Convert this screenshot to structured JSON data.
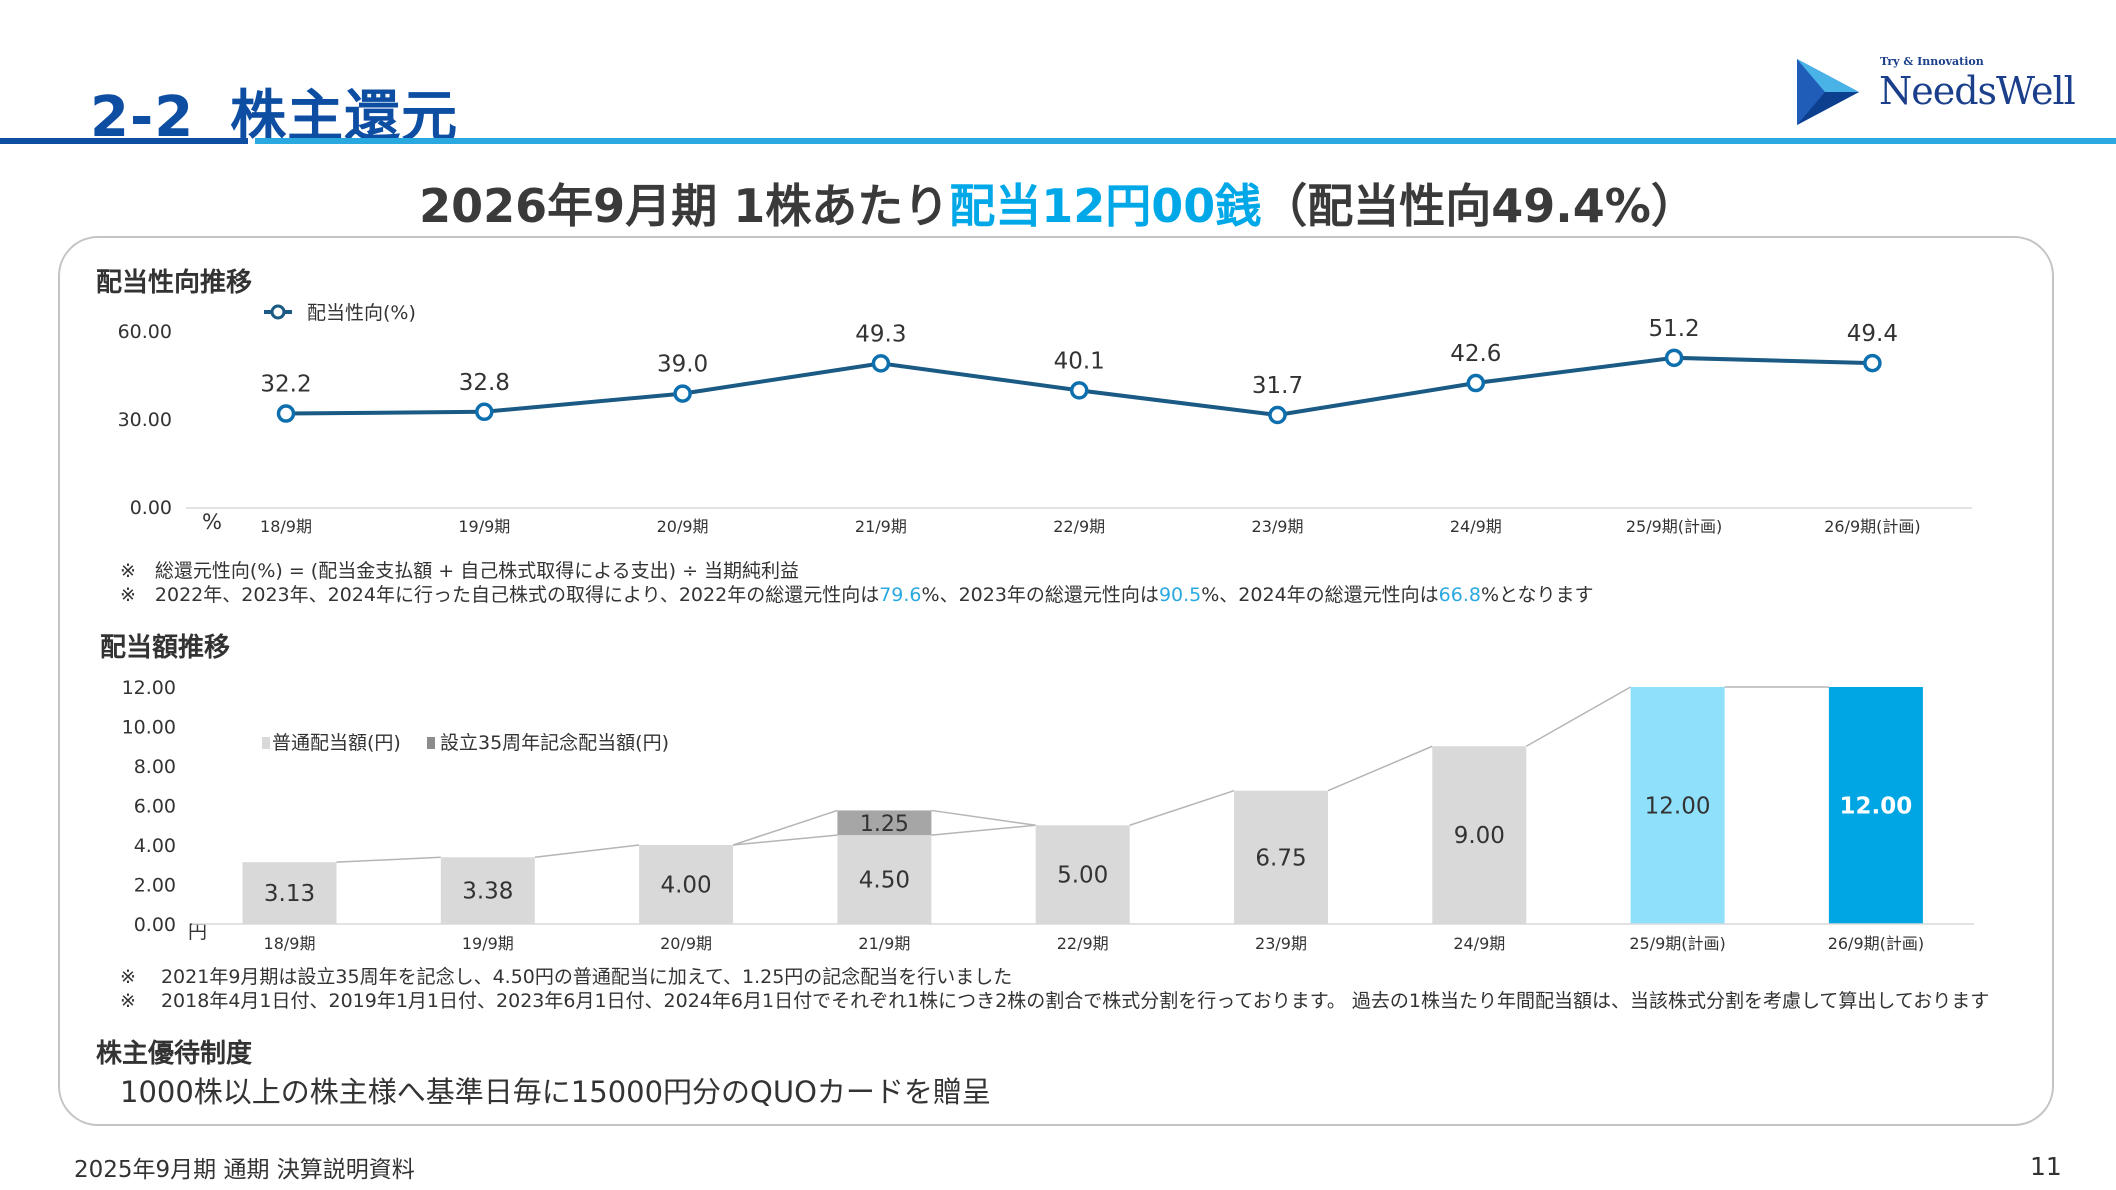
{
  "header": {
    "section_number": "2-2",
    "section_title": "株主還元",
    "logo_tagline": "Try & Innovation",
    "logo_name": "NeedsWell"
  },
  "headline": {
    "part1": "2026年9月期 1株あたり",
    "highlight": "配当12円00銭",
    "part2": "（配当性向49.4%）"
  },
  "payout_section": {
    "title": "配当性向推移",
    "notes": [
      "※　総還元性向(%) = (配当金支払額 + 自己株式取得による支出) ÷ 当期純利益"
    ],
    "note2": {
      "prefix": "※　2022年、2023年、2024年に行った自己株式の取得により、2022年の総還元性向は",
      "v1": "79.6",
      "mid1": "%、2023年の総還元性向は",
      "v2": "90.5",
      "mid2": "%、2024年の総還元性向は",
      "v3": "66.8",
      "suffix": "%となります"
    }
  },
  "dividend_section": {
    "title": "配当額推移",
    "notes": [
      "※　 2021年9月期は設立35周年を記念し、4.50円の普通配当に加えて、1.25円の記念配当を行いました",
      "※　 2018年4月1日付、2019年1月1日付、2023年6月1日付、2024年6月1日付でそれぞれ1株につき2株の割合で株式分割を行っております。 過去の1株当たり年間配当額は、当該株式分割を考慮して算出しております"
    ]
  },
  "benefit_section": {
    "title": "株主優待制度",
    "text": "1000株以上の株主様へ基準日毎に15000円分のQUOカードを贈呈"
  },
  "footer": {
    "doc_title": "2025年9月期 通期 決算説明資料",
    "page_number": "11"
  },
  "chart_data": [
    {
      "type": "line",
      "categories": [
        "18/9期",
        "19/9期",
        "20/9期",
        "21/9期",
        "22/9期",
        "23/9期",
        "24/9期",
        "25/9期(計画)",
        "26/9期(計画)"
      ],
      "series": [
        {
          "name": "配当性向(%)",
          "values": [
            32.2,
            32.8,
            39.0,
            49.3,
            40.1,
            31.7,
            42.6,
            51.2,
            49.4
          ],
          "labels": [
            "32.2",
            "32.8",
            "39.0",
            "49.3",
            "40.1",
            "31.7",
            "42.6",
            "51.2",
            "49.4"
          ]
        }
      ],
      "yticks": [
        "0.00",
        "30.00",
        "60.00"
      ],
      "ytick_values": [
        0,
        30,
        60
      ],
      "ylim": [
        0,
        60
      ],
      "ylabel": "%",
      "color": "#1a5a84"
    },
    {
      "type": "bar",
      "categories": [
        "18/9期",
        "19/9期",
        "20/9期",
        "21/9期",
        "22/9期",
        "23/9期",
        "24/9期",
        "25/9期(計画)",
        "26/9期(計画)"
      ],
      "series": [
        {
          "name": "普通配当額(円)",
          "values": [
            3.13,
            3.38,
            4.0,
            4.5,
            5.0,
            6.75,
            9.0,
            12.0,
            12.0
          ],
          "labels": [
            "3.13",
            "3.38",
            "4.00",
            "4.50",
            "5.00",
            "6.75",
            "9.00",
            "12.00",
            "12.00"
          ]
        },
        {
          "name": "設立35周年記念配当額(円)",
          "values": [
            0,
            0,
            0,
            1.25,
            0,
            0,
            0,
            0,
            0
          ],
          "labels": [
            "",
            "",
            "",
            "1.25",
            "",
            "",
            "",
            "",
            ""
          ]
        }
      ],
      "yticks": [
        "0.00",
        "2.00",
        "4.00",
        "6.00",
        "8.00",
        "10.00",
        "12.00"
      ],
      "ytick_values": [
        0,
        2,
        4,
        6,
        8,
        10,
        12
      ],
      "ylim": [
        0,
        12
      ],
      "ylabel": "円",
      "colors": {
        "regular": "#d9d9d9",
        "commemorative": "#a6a6a6",
        "plan": "#8fe0fb",
        "latest": "#00a6e3",
        "connector": "#b5b5b5"
      }
    }
  ]
}
